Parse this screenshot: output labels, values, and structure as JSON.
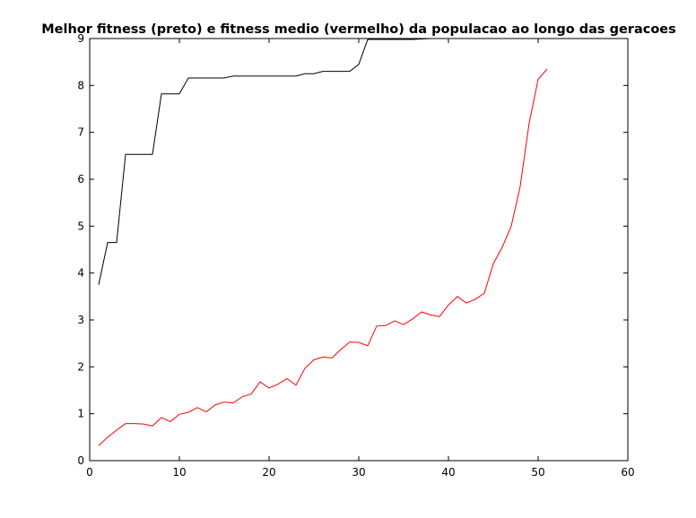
{
  "chart_data": {
    "type": "line",
    "title": "Melhor fitness (preto) e fitness medio (vermelho) da populacao ao longo das geracoes",
    "xlabel": "",
    "ylabel": "",
    "xlim": [
      0,
      60
    ],
    "ylim": [
      0,
      9
    ],
    "xticks": [
      0,
      10,
      20,
      30,
      40,
      50,
      60
    ],
    "yticks": [
      0,
      1,
      2,
      3,
      4,
      5,
      6,
      7,
      8,
      9
    ],
    "grid": false,
    "series": [
      {
        "color": "#000000",
        "x": [
          1,
          2,
          3,
          4,
          5,
          6,
          7,
          8,
          9,
          10,
          11,
          12,
          13,
          14,
          15,
          16,
          17,
          18,
          19,
          20,
          21,
          22,
          23,
          24,
          25,
          26,
          27,
          28,
          29,
          30,
          31,
          32,
          33,
          34,
          35,
          36,
          37,
          38,
          39,
          40,
          41,
          42,
          43,
          44,
          45,
          46,
          47,
          48,
          49,
          50,
          51
        ],
        "y": [
          3.75,
          4.65,
          4.65,
          6.53,
          6.53,
          6.53,
          6.53,
          7.82,
          7.82,
          7.82,
          8.16,
          8.16,
          8.16,
          8.16,
          8.16,
          8.2,
          8.2,
          8.2,
          8.2,
          8.2,
          8.2,
          8.2,
          8.2,
          8.25,
          8.25,
          8.3,
          8.3,
          8.3,
          8.3,
          8.45,
          8.98,
          8.98,
          8.98,
          8.98,
          8.98,
          8.98,
          8.99,
          9.0,
          9.01,
          9.02,
          9.03,
          9.03,
          9.04,
          9.04,
          9.05,
          9.05,
          9.05,
          9.06,
          9.06,
          9.07,
          9.07
        ]
      },
      {
        "color": "#ff0000",
        "x": [
          1,
          2,
          3,
          4,
          5,
          6,
          7,
          8,
          9,
          10,
          11,
          12,
          13,
          14,
          15,
          16,
          17,
          18,
          19,
          20,
          21,
          22,
          23,
          24,
          25,
          26,
          27,
          28,
          29,
          30,
          31,
          32,
          33,
          34,
          35,
          36,
          37,
          38,
          39,
          40,
          41,
          42,
          43,
          44,
          45,
          46,
          47,
          48,
          49,
          50,
          51
        ],
        "y": [
          0.32,
          0.5,
          0.65,
          0.79,
          0.79,
          0.78,
          0.74,
          0.92,
          0.83,
          0.99,
          1.03,
          1.13,
          1.04,
          1.19,
          1.25,
          1.23,
          1.36,
          1.42,
          1.68,
          1.55,
          1.63,
          1.75,
          1.61,
          1.97,
          2.15,
          2.21,
          2.19,
          2.37,
          2.53,
          2.52,
          2.45,
          2.87,
          2.88,
          2.98,
          2.9,
          3.02,
          3.17,
          3.11,
          3.07,
          3.32,
          3.5,
          3.36,
          3.44,
          3.57,
          4.2,
          4.55,
          5.0,
          5.85,
          7.2,
          8.13,
          8.35
        ]
      }
    ]
  }
}
